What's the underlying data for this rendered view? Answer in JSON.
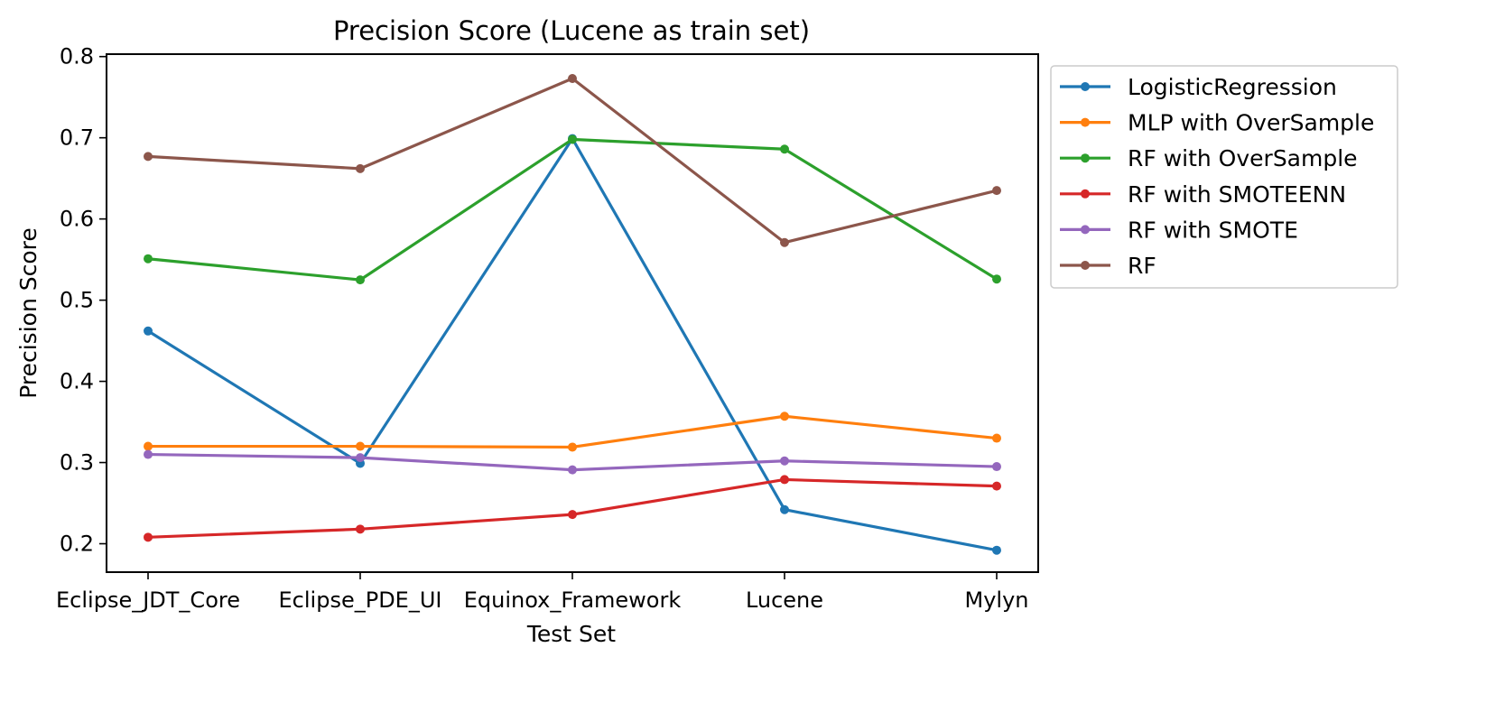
{
  "chart_data": {
    "type": "line",
    "title": "Precision Score (Lucene as train set)",
    "xlabel": "Test Set",
    "ylabel": "Precision Score",
    "categories": [
      "Eclipse_JDT_Core",
      "Eclipse_PDE_UI",
      "Equinox_Framework",
      "Lucene",
      "Mylyn"
    ],
    "yticks": [
      "0.2",
      "0.3",
      "0.4",
      "0.5",
      "0.6",
      "0.7",
      "0.8"
    ],
    "ylim": [
      0.165,
      0.803
    ],
    "grid": false,
    "legend_position": "outside-top-right",
    "series": [
      {
        "name": "LogisticRegression",
        "color": "#1f77b4",
        "values": [
          0.462,
          0.299,
          0.699,
          0.242,
          0.192
        ]
      },
      {
        "name": "MLP with OverSample",
        "color": "#ff7f0e",
        "values": [
          0.32,
          0.32,
          0.319,
          0.357,
          0.33
        ]
      },
      {
        "name": "RF with OverSample",
        "color": "#2ca02c",
        "values": [
          0.551,
          0.525,
          0.698,
          0.686,
          0.526
        ]
      },
      {
        "name": "RF with SMOTEENN",
        "color": "#d62728",
        "values": [
          0.208,
          0.218,
          0.236,
          0.279,
          0.271
        ]
      },
      {
        "name": "RF with SMOTE",
        "color": "#9467bd",
        "values": [
          0.31,
          0.306,
          0.291,
          0.302,
          0.295
        ]
      },
      {
        "name": "RF",
        "color": "#8c564b",
        "values": [
          0.677,
          0.662,
          0.773,
          0.571,
          0.635
        ]
      }
    ]
  }
}
